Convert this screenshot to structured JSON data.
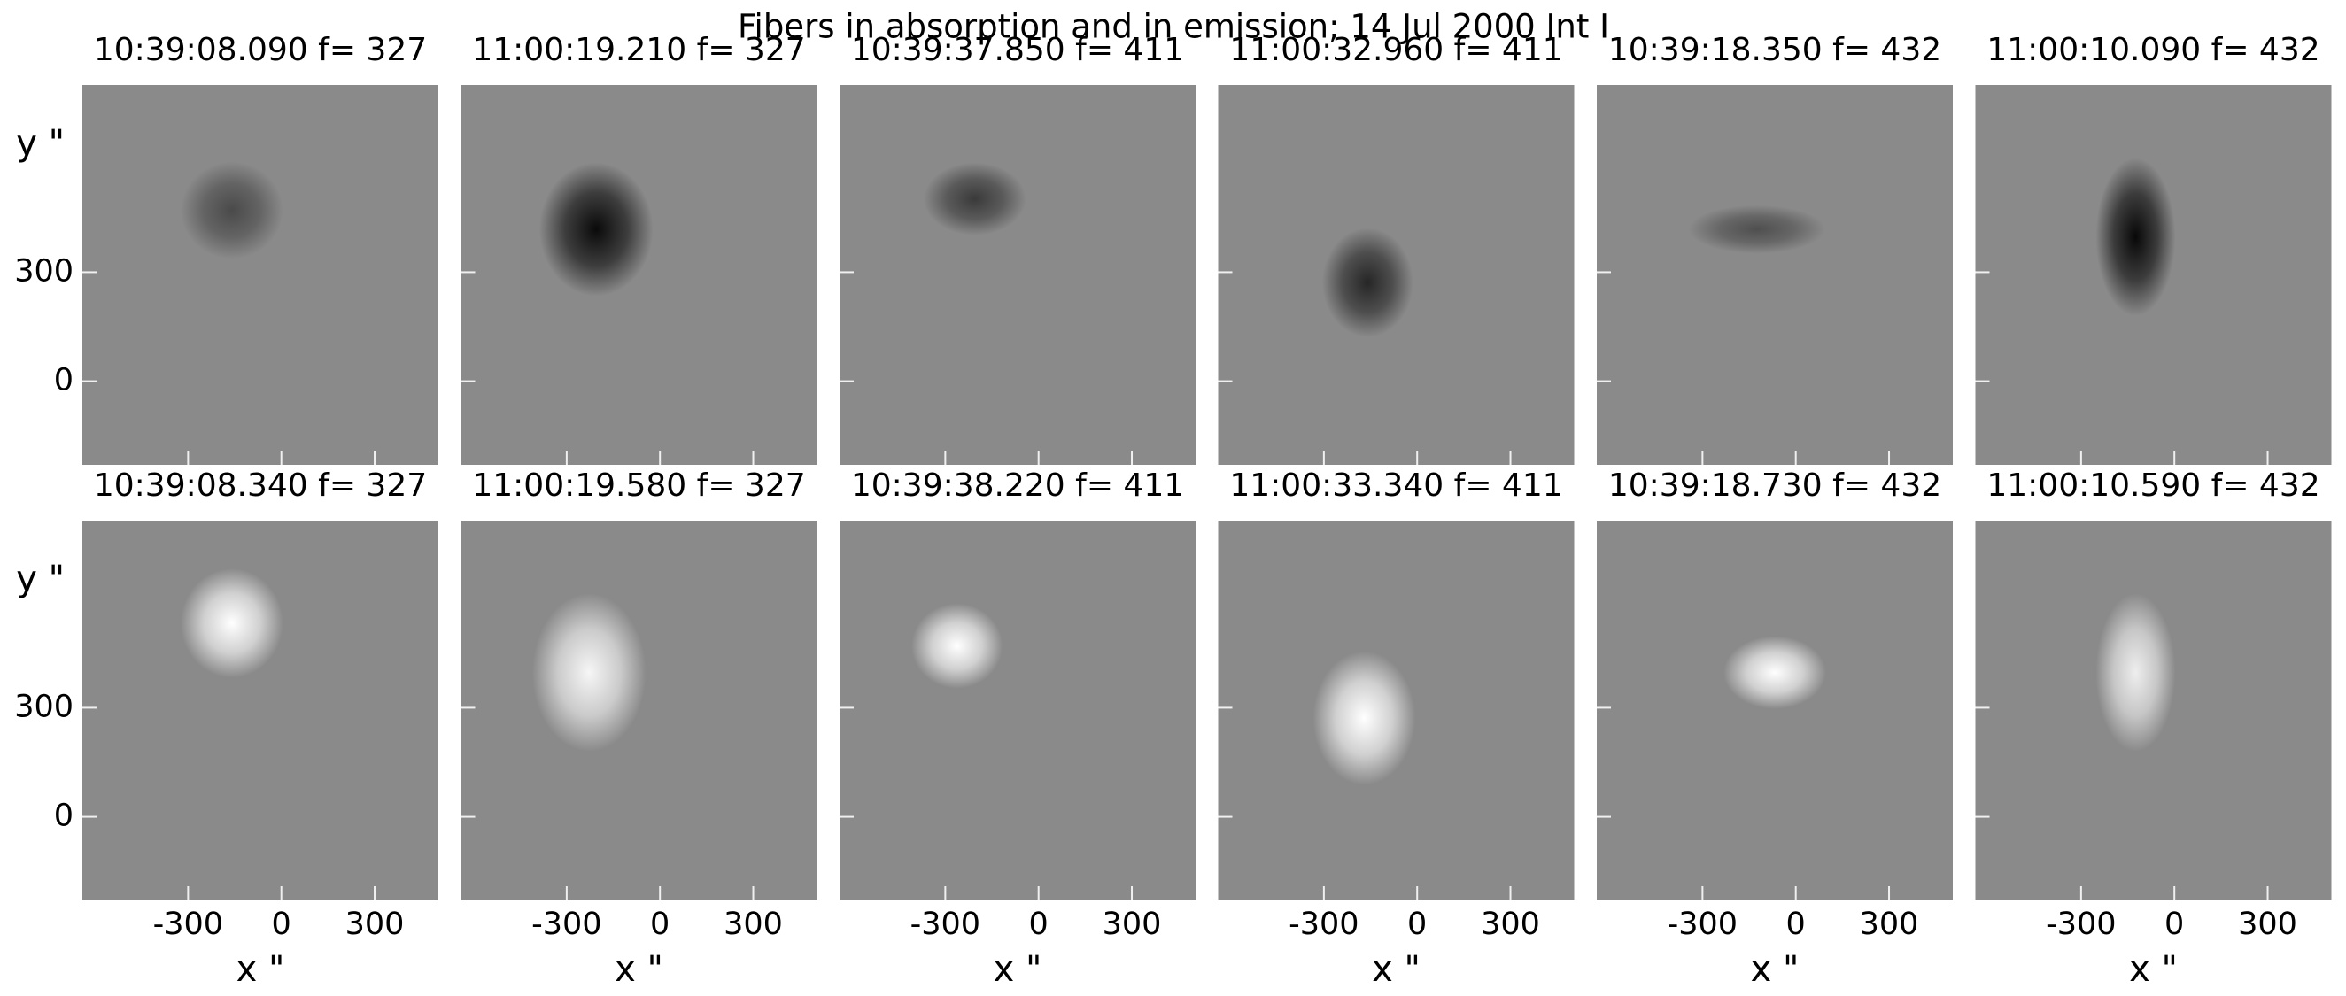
{
  "title": "Fibers in absorption and in emission; 14 Jul 2000 Int I",
  "chart_data": [
    {
      "type": "image",
      "title": "10:39:08.090  f=  327",
      "ylabel": "y \"",
      "xlim": [
        -640,
        505
      ],
      "ylim": [
        -230,
        815
      ],
      "xticks": [
        -300,
        0,
        300
      ],
      "yticks": [
        0,
        300
      ]
    },
    {
      "type": "image",
      "title": "11:00:19.210  f=  327",
      "xlim": [
        -640,
        505
      ],
      "ylim": [
        -230,
        815
      ],
      "xticks": [
        -300,
        0,
        300
      ],
      "yticks": [
        0,
        300
      ]
    },
    {
      "type": "image",
      "title": "10:39:37.850  f=  411",
      "xlim": [
        -640,
        505
      ],
      "ylim": [
        -230,
        815
      ],
      "xticks": [
        -300,
        0,
        300
      ],
      "yticks": [
        0,
        300
      ]
    },
    {
      "type": "image",
      "title": "11:00:32.960  f=  411",
      "xlim": [
        -640,
        505
      ],
      "ylim": [
        -230,
        815
      ],
      "xticks": [
        -300,
        0,
        300
      ],
      "yticks": [
        0,
        300
      ]
    },
    {
      "type": "image",
      "title": "10:39:18.350  f=  432",
      "xlim": [
        -640,
        505
      ],
      "ylim": [
        -230,
        815
      ],
      "xticks": [
        -300,
        0,
        300
      ],
      "yticks": [
        0,
        300
      ]
    },
    {
      "type": "image",
      "title": "11:00:10.090  f=  432",
      "xlim": [
        -640,
        505
      ],
      "ylim": [
        -230,
        815
      ],
      "xticks": [
        -300,
        0,
        300
      ],
      "yticks": [
        0,
        300
      ]
    },
    {
      "type": "image",
      "title": "10:39:08.340  f=  327",
      "ylabel": "y \"",
      "xlabel": "x \"",
      "xlim": [
        -640,
        505
      ],
      "ylim": [
        -230,
        815
      ],
      "xticks": [
        -300,
        0,
        300
      ],
      "yticks": [
        0,
        300
      ]
    },
    {
      "type": "image",
      "title": "11:00:19.580  f=  327",
      "xlabel": "x \"",
      "xlim": [
        -640,
        505
      ],
      "ylim": [
        -230,
        815
      ],
      "xticks": [
        -300,
        0,
        300
      ],
      "yticks": [
        0,
        300
      ]
    },
    {
      "type": "image",
      "title": "10:39:38.220  f=  411",
      "xlabel": "x \"",
      "xlim": [
        -640,
        505
      ],
      "ylim": [
        -230,
        815
      ],
      "xticks": [
        -300,
        0,
        300
      ],
      "yticks": [
        0,
        300
      ]
    },
    {
      "type": "image",
      "title": "11:00:33.340  f=  411",
      "xlabel": "x \"",
      "xlim": [
        -640,
        505
      ],
      "ylim": [
        -230,
        815
      ],
      "xticks": [
        -300,
        0,
        300
      ],
      "yticks": [
        0,
        300
      ]
    },
    {
      "type": "image",
      "title": "10:39:18.730  f=  432",
      "xlabel": "x \"",
      "xlim": [
        -640,
        505
      ],
      "ylim": [
        -230,
        815
      ],
      "xticks": [
        -300,
        0,
        300
      ],
      "yticks": [
        0,
        300
      ]
    },
    {
      "type": "image",
      "title": "11:00:10.590  f=  432",
      "xlabel": "x \"",
      "xlim": [
        -640,
        505
      ],
      "ylim": [
        -230,
        815
      ],
      "xticks": [
        -300,
        0,
        300
      ],
      "yticks": [
        0,
        300
      ]
    }
  ]
}
